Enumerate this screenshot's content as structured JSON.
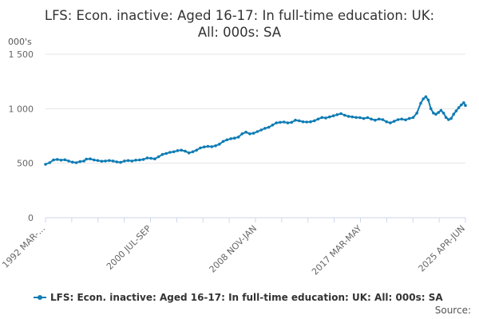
{
  "chart_data": {
    "type": "line",
    "title_line1": "LFS: Econ. inactive: Aged 16-17: In full-time education: UK:",
    "title_line2": "All: 000s: SA",
    "unit_label": "000's",
    "ylim": [
      0,
      1500
    ],
    "yticks": [
      {
        "value": 0,
        "label": "0"
      },
      {
        "value": 500,
        "label": "500"
      },
      {
        "value": 1000,
        "label": "1 000"
      },
      {
        "value": 1500,
        "label": "1 500"
      }
    ],
    "xlim": [
      1992.17,
      2025.33
    ],
    "xticks": [
      {
        "value": 1992.17,
        "label": "1992 MAR-..."
      },
      {
        "value": 2000.54,
        "label": "2000 JUL-SEP"
      },
      {
        "value": 2008.88,
        "label": "2008 NOV-JAN"
      },
      {
        "value": 2017.17,
        "label": "2017 MAR-MAY"
      },
      {
        "value": 2025.33,
        "label": "2025 APR-JUN"
      }
    ],
    "grid": true,
    "legend_position": "bottom",
    "series": [
      {
        "name": "LFS: Econ. inactive: Aged 16-17: In full-time education: UK: All: 000s: SA",
        "color": "#0f7cb4",
        "points": [
          [
            1992.17,
            490
          ],
          [
            1992.5,
            505
          ],
          [
            1992.8,
            530
          ],
          [
            1993.1,
            535
          ],
          [
            1993.4,
            528
          ],
          [
            1993.7,
            532
          ],
          [
            1994.0,
            520
          ],
          [
            1994.3,
            510
          ],
          [
            1994.6,
            505
          ],
          [
            1994.9,
            515
          ],
          [
            1995.2,
            520
          ],
          [
            1995.4,
            538
          ],
          [
            1995.7,
            540
          ],
          [
            1996.0,
            530
          ],
          [
            1996.3,
            525
          ],
          [
            1996.6,
            518
          ],
          [
            1996.9,
            520
          ],
          [
            1997.2,
            525
          ],
          [
            1997.5,
            520
          ],
          [
            1997.8,
            512
          ],
          [
            1998.1,
            508
          ],
          [
            1998.4,
            520
          ],
          [
            1998.7,
            525
          ],
          [
            1999.0,
            520
          ],
          [
            1999.3,
            528
          ],
          [
            1999.6,
            530
          ],
          [
            1999.9,
            535
          ],
          [
            2000.2,
            548
          ],
          [
            2000.5,
            545
          ],
          [
            2000.8,
            540
          ],
          [
            2001.1,
            560
          ],
          [
            2001.4,
            580
          ],
          [
            2001.7,
            590
          ],
          [
            2002.0,
            600
          ],
          [
            2002.3,
            605
          ],
          [
            2002.6,
            615
          ],
          [
            2002.9,
            620
          ],
          [
            2003.2,
            610
          ],
          [
            2003.5,
            595
          ],
          [
            2003.8,
            605
          ],
          [
            2004.1,
            620
          ],
          [
            2004.4,
            640
          ],
          [
            2004.7,
            650
          ],
          [
            2005.0,
            655
          ],
          [
            2005.3,
            652
          ],
          [
            2005.6,
            660
          ],
          [
            2005.9,
            675
          ],
          [
            2006.2,
            700
          ],
          [
            2006.5,
            715
          ],
          [
            2006.8,
            725
          ],
          [
            2007.1,
            730
          ],
          [
            2007.4,
            740
          ],
          [
            2007.7,
            770
          ],
          [
            2008.0,
            785
          ],
          [
            2008.3,
            770
          ],
          [
            2008.6,
            775
          ],
          [
            2008.9,
            790
          ],
          [
            2009.2,
            805
          ],
          [
            2009.5,
            820
          ],
          [
            2009.8,
            830
          ],
          [
            2010.1,
            850
          ],
          [
            2010.4,
            870
          ],
          [
            2010.7,
            875
          ],
          [
            2011.0,
            878
          ],
          [
            2011.3,
            870
          ],
          [
            2011.6,
            875
          ],
          [
            2011.9,
            895
          ],
          [
            2012.2,
            890
          ],
          [
            2012.5,
            880
          ],
          [
            2012.8,
            878
          ],
          [
            2013.1,
            880
          ],
          [
            2013.4,
            890
          ],
          [
            2013.7,
            905
          ],
          [
            2014.0,
            920
          ],
          [
            2014.3,
            915
          ],
          [
            2014.6,
            925
          ],
          [
            2014.9,
            935
          ],
          [
            2015.2,
            945
          ],
          [
            2015.5,
            955
          ],
          [
            2015.8,
            940
          ],
          [
            2016.1,
            930
          ],
          [
            2016.4,
            925
          ],
          [
            2016.7,
            920
          ],
          [
            2017.0,
            918
          ],
          [
            2017.3,
            910
          ],
          [
            2017.6,
            918
          ],
          [
            2017.9,
            905
          ],
          [
            2018.2,
            895
          ],
          [
            2018.5,
            905
          ],
          [
            2018.8,
            900
          ],
          [
            2019.1,
            880
          ],
          [
            2019.4,
            870
          ],
          [
            2019.7,
            885
          ],
          [
            2020.0,
            900
          ],
          [
            2020.3,
            905
          ],
          [
            2020.6,
            898
          ],
          [
            2020.9,
            910
          ],
          [
            2021.2,
            920
          ],
          [
            2021.5,
            960
          ],
          [
            2021.8,
            1050
          ],
          [
            2022.0,
            1090
          ],
          [
            2022.2,
            1110
          ],
          [
            2022.4,
            1080
          ],
          [
            2022.6,
            1000
          ],
          [
            2022.8,
            960
          ],
          [
            2023.0,
            950
          ],
          [
            2023.2,
            965
          ],
          [
            2023.4,
            985
          ],
          [
            2023.6,
            960
          ],
          [
            2023.8,
            920
          ],
          [
            2024.0,
            900
          ],
          [
            2024.2,
            910
          ],
          [
            2024.4,
            950
          ],
          [
            2024.6,
            980
          ],
          [
            2024.8,
            1010
          ],
          [
            2025.0,
            1035
          ],
          [
            2025.2,
            1055
          ],
          [
            2025.33,
            1030
          ]
        ]
      }
    ],
    "credit": "Source:"
  }
}
